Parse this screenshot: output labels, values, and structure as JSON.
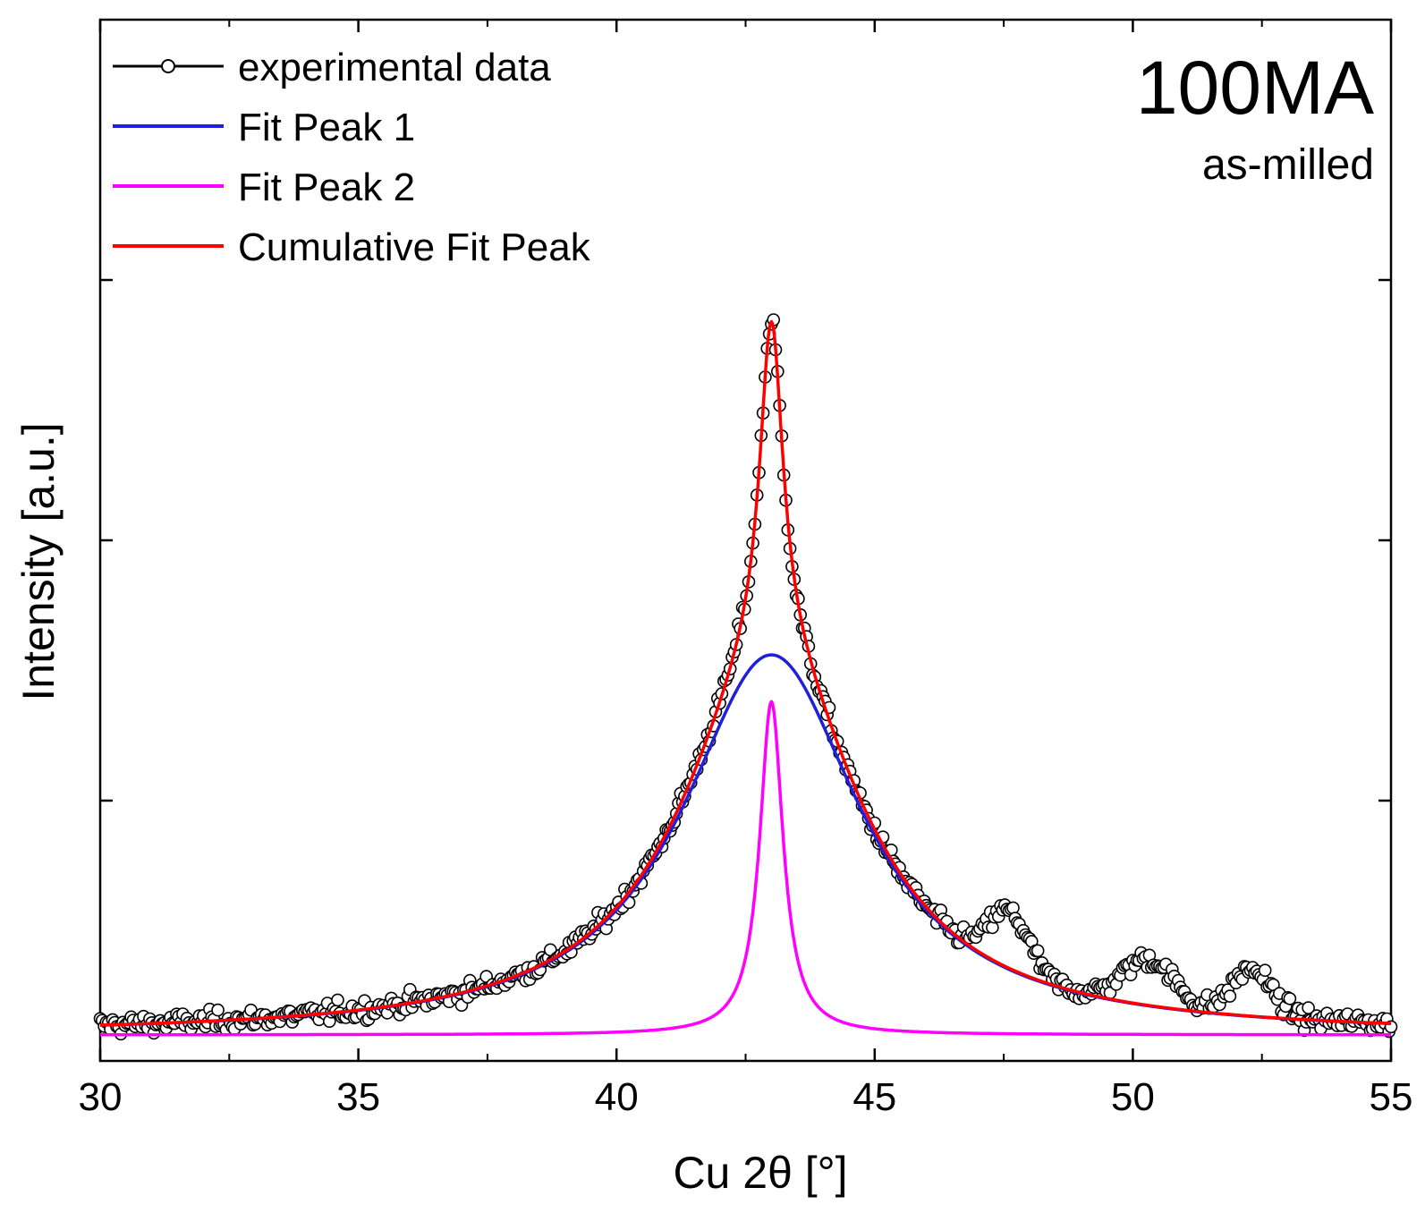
{
  "chart_data": {
    "type": "scatter",
    "title": "",
    "xlabel": "Cu 2θ [°]",
    "ylabel": "Intensity [a.u.]",
    "xlim": [
      30,
      55
    ],
    "ylim": [
      0,
      1
    ],
    "xticks": [
      30,
      35,
      40,
      45,
      50,
      55
    ],
    "x_minor_step": 2.5,
    "yticks_unlabeled": [
      0.25,
      0.5,
      0.75
    ],
    "grid": false,
    "legend_position": "top-left",
    "annotation": {
      "sample": "100MA",
      "condition": "as-milled"
    },
    "series": [
      {
        "name": "experimental data",
        "kind": "scatter-line",
        "color": "#000000",
        "step": 0.04,
        "noise": 0.012,
        "humps": [
          {
            "center": 47.6,
            "height": 0.055,
            "width": 0.55
          },
          {
            "center": 50.3,
            "height": 0.045,
            "width": 0.7
          },
          {
            "center": 52.3,
            "height": 0.045,
            "width": 0.55
          }
        ]
      },
      {
        "name": "Fit Peak 1",
        "kind": "line",
        "color": "#1f1fdd",
        "shape": "lorentzian",
        "center": 43.0,
        "height": 0.365,
        "fwhm": 4.2
      },
      {
        "name": "Fit Peak 2",
        "kind": "line",
        "color": "#ff00ff",
        "shape": "lorentzian",
        "center": 43.0,
        "height": 0.32,
        "fwhm": 0.55
      },
      {
        "name": "Cumulative Fit Peak",
        "kind": "line",
        "color": "#ff0000",
        "shape": "sum of Fit Peak 1 and Fit Peak 2"
      }
    ],
    "baseline": 0.025
  }
}
